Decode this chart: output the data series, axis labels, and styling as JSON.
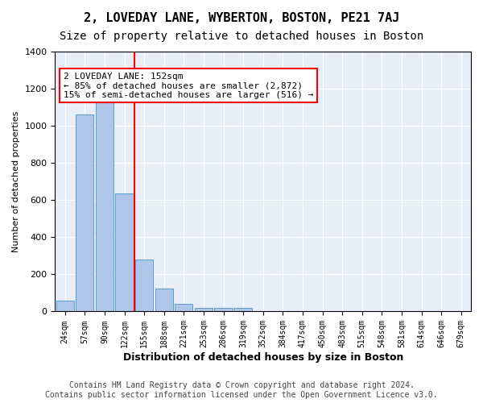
{
  "title1": "2, LOVEDAY LANE, WYBERTON, BOSTON, PE21 7AJ",
  "title2": "Size of property relative to detached houses in Boston",
  "xlabel": "Distribution of detached houses by size in Boston",
  "ylabel": "Number of detached properties",
  "categories": [
    "24sqm",
    "57sqm",
    "90sqm",
    "122sqm",
    "155sqm",
    "188sqm",
    "221sqm",
    "253sqm",
    "286sqm",
    "319sqm",
    "352sqm",
    "384sqm",
    "417sqm",
    "450sqm",
    "483sqm",
    "515sqm",
    "548sqm",
    "581sqm",
    "614sqm",
    "646sqm",
    "679sqm"
  ],
  "values": [
    60,
    1060,
    1150,
    635,
    280,
    125,
    40,
    20,
    20,
    20,
    0,
    0,
    0,
    0,
    0,
    0,
    0,
    0,
    0,
    0,
    0
  ],
  "bar_color": "#aec6e8",
  "bar_edge_color": "#5a9fd4",
  "vline_x": 3,
  "vline_color": "red",
  "annotation_text": "2 LOVEDAY LANE: 152sqm\n← 85% of detached houses are smaller (2,872)\n15% of semi-detached houses are larger (516) →",
  "annotation_box_color": "white",
  "annotation_box_edge_color": "red",
  "ylim": [
    0,
    1400
  ],
  "yticks": [
    0,
    200,
    400,
    600,
    800,
    1000,
    1200,
    1400
  ],
  "background_color": "#e8eef8",
  "footer_text": "Contains HM Land Registry data © Crown copyright and database right 2024.\nContains public sector information licensed under the Open Government Licence v3.0.",
  "title1_fontsize": 11,
  "title2_fontsize": 10,
  "annotation_fontsize": 8,
  "footer_fontsize": 7
}
